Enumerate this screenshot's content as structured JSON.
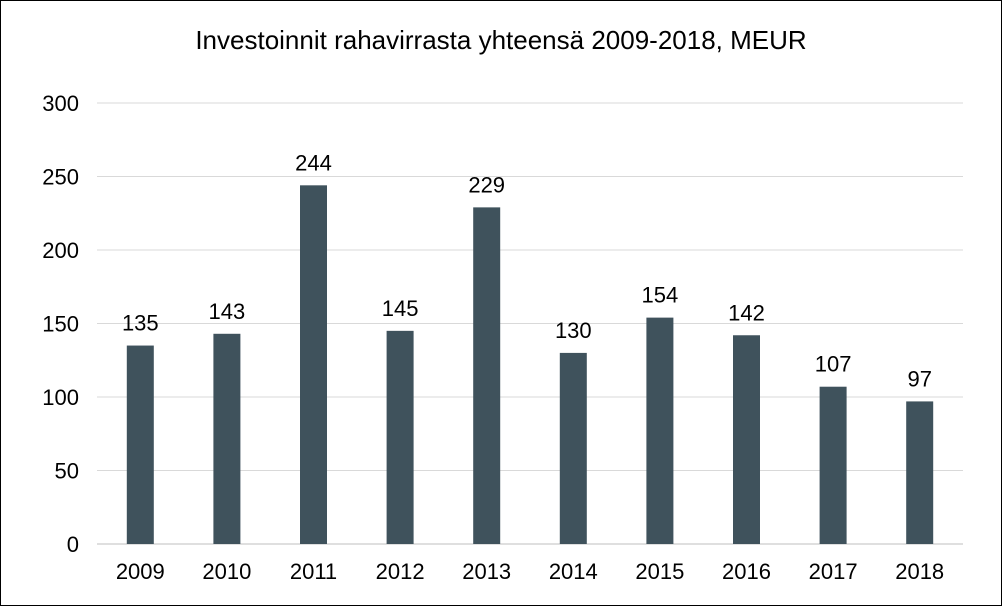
{
  "chart_data": {
    "type": "bar",
    "title": "Investoinnit rahavirrasta yhteensä 2009-2018, MEUR",
    "categories": [
      "2009",
      "2010",
      "2011",
      "2012",
      "2013",
      "2014",
      "2015",
      "2016",
      "2017",
      "2018"
    ],
    "values": [
      135,
      143,
      244,
      145,
      229,
      130,
      154,
      142,
      107,
      97
    ],
    "data_labels": [
      "135",
      "143",
      "244",
      "145",
      "229",
      "130",
      "154",
      "142",
      "107",
      "97"
    ],
    "y_ticks": [
      "0",
      "50",
      "100",
      "150",
      "200",
      "250",
      "300"
    ],
    "ylim": [
      0,
      300
    ],
    "grid": true,
    "legend": "none",
    "bar_color": "#3f525c",
    "grid_color": "#d9d9d9"
  }
}
